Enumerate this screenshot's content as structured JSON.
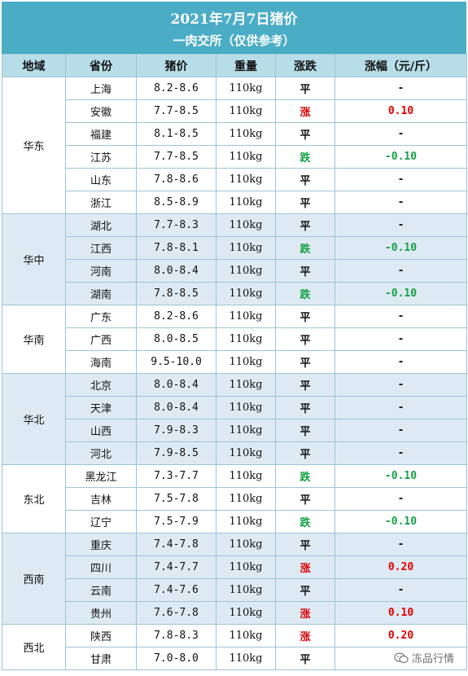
{
  "header": {
    "title": "2021年7月7日猪价",
    "subtitle": "一肉交所（仅供参考）"
  },
  "columns": [
    "地域",
    "省份",
    "猪价",
    "重量",
    "涨跌",
    "涨幅（元/斤）"
  ],
  "colors": {
    "header_bg": "#4bacc6",
    "subheader_bg": "#b7dee8",
    "band_bg": "#deeaf3",
    "up": "#e00000",
    "down": "#14a046"
  },
  "regions": [
    {
      "name": "华东",
      "shaded": false,
      "rows": [
        {
          "province": "上海",
          "price": "8.2-8.6",
          "weight": "110kg",
          "trend": "平",
          "dir": "flat",
          "change": "-"
        },
        {
          "province": "安徽",
          "price": "7.7-8.5",
          "weight": "110kg",
          "trend": "涨",
          "dir": "up",
          "change": "0.10"
        },
        {
          "province": "福建",
          "price": "8.1-8.5",
          "weight": "110kg",
          "trend": "平",
          "dir": "flat",
          "change": "-"
        },
        {
          "province": "江苏",
          "price": "7.7-8.5",
          "weight": "110kg",
          "trend": "跌",
          "dir": "down",
          "change": "-0.10"
        },
        {
          "province": "山东",
          "price": "7.8-8.6",
          "weight": "110kg",
          "trend": "平",
          "dir": "flat",
          "change": "-"
        },
        {
          "province": "浙江",
          "price": "8.5-8.9",
          "weight": "110kg",
          "trend": "平",
          "dir": "flat",
          "change": "-"
        }
      ]
    },
    {
      "name": "华中",
      "shaded": true,
      "rows": [
        {
          "province": "湖北",
          "price": "7.7-8.3",
          "weight": "110kg",
          "trend": "平",
          "dir": "flat",
          "change": "-"
        },
        {
          "province": "江西",
          "price": "7.8-8.1",
          "weight": "110kg",
          "trend": "跌",
          "dir": "down",
          "change": "-0.10"
        },
        {
          "province": "河南",
          "price": "8.0-8.4",
          "weight": "110kg",
          "trend": "平",
          "dir": "flat",
          "change": "-"
        },
        {
          "province": "湖南",
          "price": "7.8-8.5",
          "weight": "110kg",
          "trend": "跌",
          "dir": "down",
          "change": "-0.10"
        }
      ]
    },
    {
      "name": "华南",
      "shaded": false,
      "rows": [
        {
          "province": "广东",
          "price": "8.2-8.6",
          "weight": "110kg",
          "trend": "平",
          "dir": "flat",
          "change": "-"
        },
        {
          "province": "广西",
          "price": "8.0-8.5",
          "weight": "110kg",
          "trend": "平",
          "dir": "flat",
          "change": "-"
        },
        {
          "province": "海南",
          "price": "9.5-10.0",
          "weight": "110kg",
          "trend": "平",
          "dir": "flat",
          "change": "-"
        }
      ]
    },
    {
      "name": "华北",
      "shaded": true,
      "rows": [
        {
          "province": "北京",
          "price": "8.0-8.4",
          "weight": "110kg",
          "trend": "平",
          "dir": "flat",
          "change": "-"
        },
        {
          "province": "天津",
          "price": "8.0-8.4",
          "weight": "110kg",
          "trend": "平",
          "dir": "flat",
          "change": "-"
        },
        {
          "province": "山西",
          "price": "7.9-8.3",
          "weight": "110kg",
          "trend": "平",
          "dir": "flat",
          "change": "-"
        },
        {
          "province": "河北",
          "price": "7.9-8.5",
          "weight": "110kg",
          "trend": "平",
          "dir": "flat",
          "change": "-"
        }
      ]
    },
    {
      "name": "东北",
      "shaded": false,
      "rows": [
        {
          "province": "黑龙江",
          "price": "7.3-7.7",
          "weight": "110kg",
          "trend": "跌",
          "dir": "down",
          "change": "-0.10"
        },
        {
          "province": "吉林",
          "price": "7.5-7.8",
          "weight": "110kg",
          "trend": "平",
          "dir": "flat",
          "change": "-"
        },
        {
          "province": "辽宁",
          "price": "7.5-7.9",
          "weight": "110kg",
          "trend": "跌",
          "dir": "down",
          "change": "-0.10"
        }
      ]
    },
    {
      "name": "西南",
      "shaded": true,
      "rows": [
        {
          "province": "重庆",
          "price": "7.4-7.8",
          "weight": "110kg",
          "trend": "平",
          "dir": "flat",
          "change": "-"
        },
        {
          "province": "四川",
          "price": "7.4-7.7",
          "weight": "110kg",
          "trend": "涨",
          "dir": "up",
          "change": "0.20"
        },
        {
          "province": "云南",
          "price": "7.4-7.6",
          "weight": "110kg",
          "trend": "平",
          "dir": "flat",
          "change": "-"
        },
        {
          "province": "贵州",
          "price": "7.6-7.8",
          "weight": "110kg",
          "trend": "涨",
          "dir": "up",
          "change": "0.10"
        }
      ]
    },
    {
      "name": "西北",
      "shaded": false,
      "rows": [
        {
          "province": "陕西",
          "price": "7.8-8.3",
          "weight": "110kg",
          "trend": "涨",
          "dir": "up",
          "change": "0.20"
        },
        {
          "province": "甘肃",
          "price": "7.0-8.0",
          "weight": "110kg",
          "trend": "平",
          "dir": "flat",
          "change": "-"
        }
      ]
    }
  ],
  "watermark": {
    "icon": "wechat-icon",
    "text": "冻品行情"
  }
}
